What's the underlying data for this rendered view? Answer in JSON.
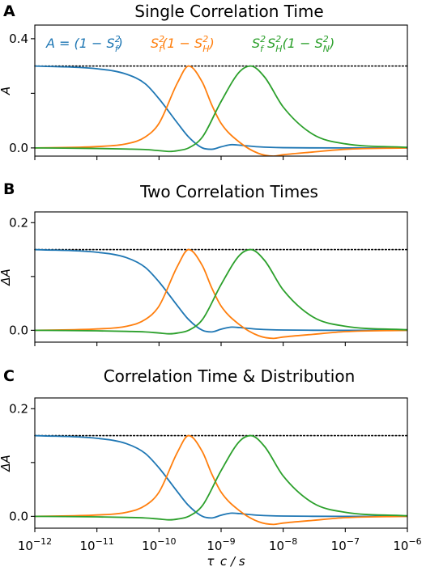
{
  "figure": {
    "x_axis": {
      "scale": "log",
      "xlim": [
        1e-12,
        1e-06
      ],
      "xlabel": "τ_c / s",
      "ticks": [
        1e-12,
        1e-11,
        1e-10,
        1e-09,
        1e-08,
        1e-07,
        1e-06
      ],
      "tick_labels": [
        {
          "base": "10",
          "exp": "−12"
        },
        {
          "base": "10",
          "exp": "−11"
        },
        {
          "base": "10",
          "exp": "−10"
        },
        {
          "base": "10",
          "exp": "−9"
        },
        {
          "base": "10",
          "exp": "−8"
        },
        {
          "base": "10",
          "exp": "−7"
        },
        {
          "base": "10",
          "exp": "−6"
        }
      ]
    },
    "colors": {
      "series_1": "#1f77b4",
      "series_2": "#ff7f0e",
      "series_3": "#2ca02c",
      "reference": "#000000"
    },
    "legend": {
      "placement": "top, inside panel A",
      "entries": [
        {
          "series": "series_1",
          "label": "A = (1 − S_f^2)"
        },
        {
          "series": "series_2",
          "label": "S_f^2(1 − S_H^2)"
        },
        {
          "series": "series_3",
          "label": "S_f^2 S_H^2(1 − S_N^2)"
        }
      ]
    }
  },
  "chart_data": [
    {
      "type": "line",
      "panel": "A",
      "title": "Single Correlation Time",
      "xlabel": "",
      "ylabel": "A",
      "ylim": [
        -0.03,
        0.45
      ],
      "yticks": [
        0.0,
        0.4
      ],
      "ytick_labels": [
        "0.0",
        "0.4"
      ],
      "grid": false,
      "reference_line": {
        "y": 0.3,
        "style": "dotted"
      },
      "series": [
        {
          "name": "A = (1 − S_f^2)",
          "color": "#1f77b4",
          "x": [
            1e-12,
            1e-11,
            3e-11,
            6e-11,
            1e-10,
            2e-10,
            3e-10,
            5e-10,
            7e-10,
            1e-09,
            1.5e-09,
            2e-09,
            4e-09,
            1e-08,
            1e-07,
            1e-06
          ],
          "y": [
            0.3,
            0.29,
            0.27,
            0.235,
            0.18,
            0.09,
            0.04,
            0.0,
            -0.005,
            0.004,
            0.012,
            0.01,
            0.004,
            0.001,
            0.0,
            0.0
          ]
        },
        {
          "name": "S_f^2(1 − S_H^2)",
          "color": "#ff7f0e",
          "x": [
            1e-12,
            1e-11,
            3e-11,
            6e-11,
            1e-10,
            2e-10,
            3e-10,
            5e-10,
            7e-10,
            1e-09,
            2e-09,
            4e-09,
            7e-09,
            1e-08,
            3e-08,
            1e-07,
            1e-06
          ],
          "y": [
            0.0,
            0.005,
            0.015,
            0.04,
            0.09,
            0.24,
            0.3,
            0.24,
            0.16,
            0.09,
            0.02,
            -0.02,
            -0.03,
            -0.025,
            -0.015,
            -0.005,
            0.0
          ]
        },
        {
          "name": "S_f^2 S_H^2(1 − S_N^2)",
          "color": "#2ca02c",
          "x": [
            1e-12,
            1e-11,
            3e-11,
            6e-11,
            1e-10,
            1.5e-10,
            2e-10,
            3e-10,
            5e-10,
            1e-09,
            2e-09,
            3e-09,
            5e-09,
            1e-08,
            3e-08,
            1e-07,
            1e-06
          ],
          "y": [
            0.0,
            -0.002,
            -0.004,
            -0.006,
            -0.01,
            -0.013,
            -0.01,
            0.0,
            0.04,
            0.17,
            0.28,
            0.3,
            0.26,
            0.15,
            0.05,
            0.015,
            0.002
          ]
        }
      ]
    },
    {
      "type": "line",
      "panel": "B",
      "title": "Two Correlation Times",
      "xlabel": "",
      "ylabel": "ΔA",
      "ylim": [
        -0.022,
        0.22
      ],
      "yticks": [
        0.0,
        0.2
      ],
      "ytick_labels": [
        "0.0",
        "0.2"
      ],
      "grid": false,
      "reference_line": {
        "y": 0.15,
        "style": "dotted"
      },
      "series": [
        {
          "color": "#1f77b4",
          "x": [
            1e-12,
            1e-11,
            3e-11,
            6e-11,
            1e-10,
            2e-10,
            3e-10,
            5e-10,
            7e-10,
            1e-09,
            1.5e-09,
            2e-09,
            4e-09,
            1e-08,
            1e-07,
            1e-06
          ],
          "y": [
            0.15,
            0.145,
            0.135,
            0.117,
            0.09,
            0.045,
            0.02,
            0.0,
            -0.003,
            0.002,
            0.006,
            0.005,
            0.002,
            0.0005,
            0.0,
            0.0
          ]
        },
        {
          "color": "#ff7f0e",
          "x": [
            1e-12,
            1e-11,
            3e-11,
            6e-11,
            1e-10,
            2e-10,
            3e-10,
            5e-10,
            7e-10,
            1e-09,
            2e-09,
            4e-09,
            7e-09,
            1e-08,
            3e-08,
            1e-07,
            1e-06
          ],
          "y": [
            0.0,
            0.0025,
            0.0075,
            0.02,
            0.045,
            0.12,
            0.15,
            0.12,
            0.08,
            0.045,
            0.01,
            -0.01,
            -0.015,
            -0.0125,
            -0.0075,
            -0.0025,
            0.0
          ]
        },
        {
          "color": "#2ca02c",
          "x": [
            1e-12,
            1e-11,
            3e-11,
            6e-11,
            1e-10,
            1.5e-10,
            2e-10,
            3e-10,
            5e-10,
            1e-09,
            2e-09,
            3e-09,
            5e-09,
            1e-08,
            3e-08,
            1e-07,
            1e-06
          ],
          "y": [
            0.0,
            -0.001,
            -0.002,
            -0.003,
            -0.005,
            -0.0065,
            -0.005,
            0.0,
            0.02,
            0.085,
            0.14,
            0.15,
            0.13,
            0.075,
            0.025,
            0.0075,
            0.001
          ]
        }
      ]
    },
    {
      "type": "line",
      "panel": "C",
      "title": "Correlation Time & Distribution",
      "xlabel": "τ_c / s",
      "ylabel": "ΔA",
      "ylim": [
        -0.022,
        0.22
      ],
      "yticks": [
        0.0,
        0.2
      ],
      "ytick_labels": [
        "0.0",
        "0.2"
      ],
      "grid": false,
      "reference_line": {
        "y": 0.15,
        "style": "dotted"
      },
      "series": [
        {
          "color": "#1f77b4",
          "x": [
            1e-12,
            1e-11,
            3e-11,
            6e-11,
            1e-10,
            2e-10,
            3e-10,
            5e-10,
            7e-10,
            1e-09,
            1.5e-09,
            2e-09,
            4e-09,
            1e-08,
            1e-07,
            1e-06
          ],
          "y": [
            0.15,
            0.145,
            0.135,
            0.117,
            0.09,
            0.045,
            0.02,
            0.0,
            -0.003,
            0.002,
            0.006,
            0.005,
            0.002,
            0.0005,
            0.0,
            0.0
          ]
        },
        {
          "color": "#ff7f0e",
          "x": [
            1e-12,
            1e-11,
            3e-11,
            6e-11,
            1e-10,
            2e-10,
            3e-10,
            5e-10,
            7e-10,
            1e-09,
            2e-09,
            4e-09,
            7e-09,
            1e-08,
            3e-08,
            1e-07,
            1e-06
          ],
          "y": [
            0.0,
            0.0025,
            0.0075,
            0.02,
            0.045,
            0.12,
            0.15,
            0.12,
            0.08,
            0.045,
            0.01,
            -0.01,
            -0.015,
            -0.0125,
            -0.0075,
            -0.0025,
            0.0
          ]
        },
        {
          "color": "#2ca02c",
          "x": [
            1e-12,
            1e-11,
            3e-11,
            6e-11,
            1e-10,
            1.5e-10,
            2e-10,
            3e-10,
            5e-10,
            1e-09,
            2e-09,
            3e-09,
            5e-09,
            1e-08,
            3e-08,
            1e-07,
            1e-06
          ],
          "y": [
            0.0,
            -0.001,
            -0.002,
            -0.003,
            -0.005,
            -0.0065,
            -0.005,
            0.0,
            0.02,
            0.085,
            0.14,
            0.15,
            0.13,
            0.075,
            0.025,
            0.0075,
            0.001
          ]
        }
      ]
    }
  ]
}
